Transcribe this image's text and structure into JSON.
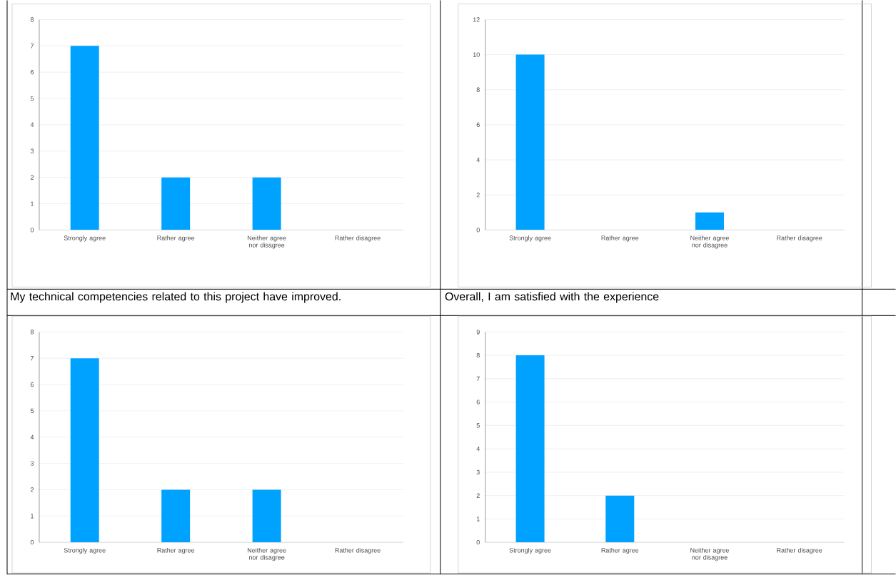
{
  "chart_data": [
    {
      "type": "bar",
      "categories": [
        "Strongly agree",
        "Rather agree",
        "Neither agree nor disagree",
        "Rather disagree"
      ],
      "values": [
        7,
        2,
        2,
        0
      ],
      "color": "#00a2ff",
      "ylim": [
        0,
        8
      ],
      "yticks": [
        0,
        1,
        2,
        3,
        4,
        5,
        6,
        7,
        8
      ],
      "grid": "y"
    },
    {
      "type": "bar",
      "categories": [
        "Strongly agree",
        "Rather agree",
        "Neither agree nor disagree",
        "Rather disagree"
      ],
      "values": [
        10,
        0,
        1,
        0
      ],
      "color": "#00a2ff",
      "ylim": [
        0,
        12
      ],
      "yticks": [
        0,
        2,
        4,
        6,
        8,
        10,
        12
      ],
      "grid": "y"
    },
    {
      "type": "bar",
      "title": "My technical competencies related to this project have improved.",
      "categories": [
        "Strongly agree",
        "Rather agree",
        "Neither agree nor disagree",
        "Rather disagree"
      ],
      "values": [
        7,
        2,
        2,
        0
      ],
      "color": "#00a2ff",
      "ylim": [
        0,
        8
      ],
      "yticks": [
        0,
        1,
        2,
        3,
        4,
        5,
        6,
        7,
        8
      ],
      "grid": "y"
    },
    {
      "type": "bar",
      "title": "Overall, I am satisfied with the experience",
      "categories": [
        "Strongly agree",
        "Rather agree",
        "Neither agree nor disagree",
        "Rather disagree"
      ],
      "values": [
        8,
        2,
        0,
        0
      ],
      "color": "#00a2ff",
      "ylim": [
        0,
        9
      ],
      "yticks": [
        0,
        1,
        2,
        3,
        4,
        5,
        6,
        7,
        8,
        9
      ],
      "grid": "y"
    }
  ]
}
